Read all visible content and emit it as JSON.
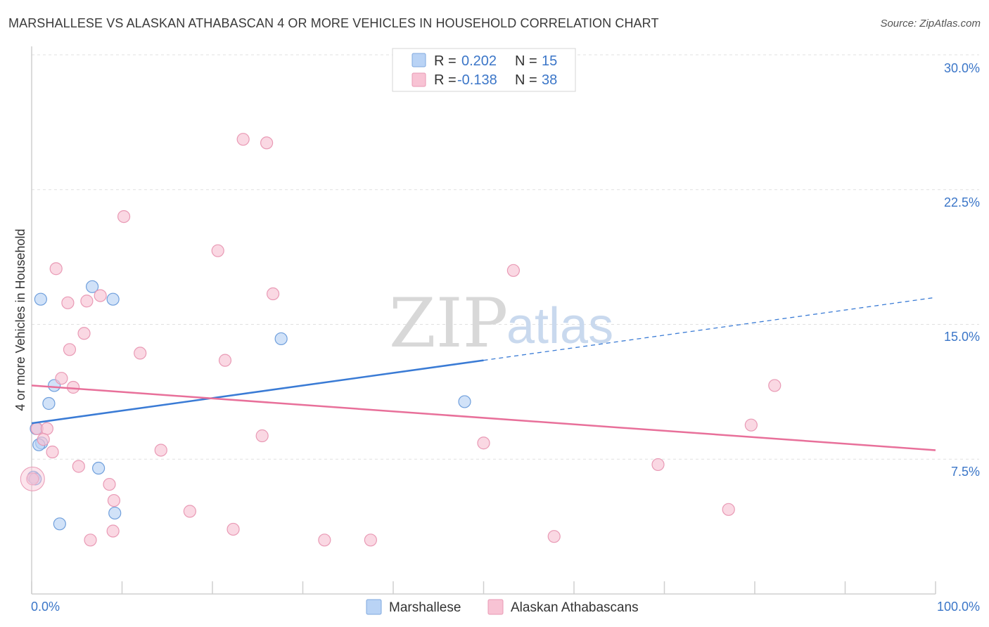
{
  "title": "MARSHALLESE VS ALASKAN ATHABASCAN 4 OR MORE VEHICLES IN HOUSEHOLD CORRELATION CHART",
  "source": "Source: ZipAtlas.com",
  "watermark": {
    "zip": "ZIP",
    "atlas": "atlas"
  },
  "colors": {
    "blue": "#3a7bd5",
    "blue_fill": "#b9d3f5",
    "pink": "#e8709a",
    "pink_fill": "#f8c3d4",
    "grid": "#e0e0e0",
    "axis_label": "#3b76c8"
  },
  "legend": {
    "rows": [
      {
        "r_label": "R = ",
        "r_value": "0.202",
        "n_label": "N = ",
        "n_value": "15"
      },
      {
        "r_label": "R = ",
        "r_value": "-0.138",
        "n_label": "N = ",
        "n_value": "38"
      }
    ]
  },
  "chart_data": {
    "type": "scatter",
    "xlabel": "",
    "ylabel": "4 or more Vehicles in Household",
    "xlim": [
      0,
      100
    ],
    "ylim": [
      0,
      30
    ],
    "x_tick_labels": [
      "0.0%",
      "100.0%"
    ],
    "y_ticks": [
      7.5,
      15.0,
      22.5,
      30.0
    ],
    "y_tick_labels": [
      "7.5%",
      "15.0%",
      "22.5%",
      "30.0%"
    ],
    "series": [
      {
        "name": "Marshallese",
        "color": "#3a7bd5",
        "trend": {
          "x0": 0,
          "y0": 9.5,
          "x1": 50,
          "y1": 13.0,
          "dash_to_x": 100,
          "dash_to_y": 16.5
        },
        "points": [
          {
            "x": 1.0,
            "y": 16.4
          },
          {
            "x": 6.7,
            "y": 17.1
          },
          {
            "x": 9.0,
            "y": 16.4
          },
          {
            "x": 27.6,
            "y": 14.2
          },
          {
            "x": 2.5,
            "y": 11.6
          },
          {
            "x": 1.9,
            "y": 10.6
          },
          {
            "x": 47.9,
            "y": 10.7
          },
          {
            "x": 0.5,
            "y": 9.2
          },
          {
            "x": 1.1,
            "y": 8.4
          },
          {
            "x": 0.8,
            "y": 8.3
          },
          {
            "x": 7.4,
            "y": 7.0
          },
          {
            "x": 0.2,
            "y": 6.5
          },
          {
            "x": 0.4,
            "y": 6.4
          },
          {
            "x": 9.2,
            "y": 4.5
          },
          {
            "x": 3.1,
            "y": 3.9
          }
        ]
      },
      {
        "name": "Alaskan Athabascans",
        "color": "#e8709a",
        "trend": {
          "x0": 0,
          "y0": 11.6,
          "x1": 100,
          "y1": 8.0
        },
        "points": [
          {
            "x": 23.4,
            "y": 25.3
          },
          {
            "x": 26.0,
            "y": 25.1
          },
          {
            "x": 10.2,
            "y": 21.0
          },
          {
            "x": 20.6,
            "y": 19.1
          },
          {
            "x": 2.7,
            "y": 18.1
          },
          {
            "x": 53.3,
            "y": 18.0
          },
          {
            "x": 26.7,
            "y": 16.7
          },
          {
            "x": 7.6,
            "y": 16.6
          },
          {
            "x": 4.0,
            "y": 16.2
          },
          {
            "x": 6.1,
            "y": 16.3
          },
          {
            "x": 5.8,
            "y": 14.5
          },
          {
            "x": 4.2,
            "y": 13.6
          },
          {
            "x": 12.0,
            "y": 13.4
          },
          {
            "x": 21.4,
            "y": 13.0
          },
          {
            "x": 3.3,
            "y": 12.0
          },
          {
            "x": 4.6,
            "y": 11.5
          },
          {
            "x": 82.2,
            "y": 11.6
          },
          {
            "x": 79.6,
            "y": 9.4
          },
          {
            "x": 0.6,
            "y": 9.2
          },
          {
            "x": 1.7,
            "y": 9.2
          },
          {
            "x": 1.3,
            "y": 8.6
          },
          {
            "x": 25.5,
            "y": 8.8
          },
          {
            "x": 50.0,
            "y": 8.4
          },
          {
            "x": 14.3,
            "y": 8.0
          },
          {
            "x": 2.3,
            "y": 7.9
          },
          {
            "x": 5.2,
            "y": 7.1
          },
          {
            "x": 69.3,
            "y": 7.2
          },
          {
            "x": 0.1,
            "y": 6.4
          },
          {
            "x": 8.6,
            "y": 6.1
          },
          {
            "x": 9.1,
            "y": 5.2
          },
          {
            "x": 17.5,
            "y": 4.6
          },
          {
            "x": 77.1,
            "y": 4.7
          },
          {
            "x": 22.3,
            "y": 3.6
          },
          {
            "x": 9.0,
            "y": 3.5
          },
          {
            "x": 32.4,
            "y": 3.0
          },
          {
            "x": 37.5,
            "y": 3.0
          },
          {
            "x": 6.5,
            "y": 3.0
          },
          {
            "x": 57.8,
            "y": 3.2
          }
        ]
      }
    ],
    "legend_position": "top-center",
    "grid": true
  }
}
